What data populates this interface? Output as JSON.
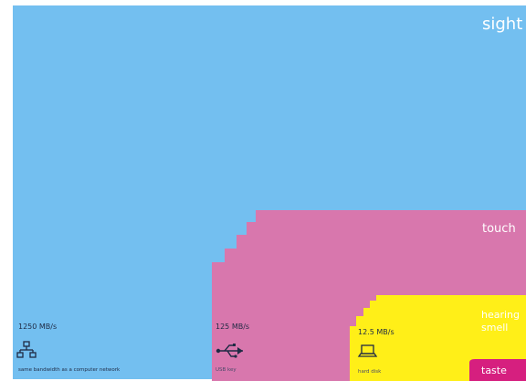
{
  "senses": {
    "sight": "sight",
    "touch": "touch",
    "hearing": "hearing",
    "smell": "smell",
    "taste": "taste"
  },
  "comparisons": {
    "network": {
      "rate": "1250 MB/s",
      "note": "same bandwidth as a computer network",
      "icon": "network-icon"
    },
    "usb": {
      "rate": "125 MB/s",
      "note": "USB key",
      "icon": "usb-icon"
    },
    "hard_disk": {
      "rate": "12.5 MB/s",
      "note": "hard disk",
      "icon": "laptop-icon"
    }
  },
  "colors": {
    "sight": "#73bff0",
    "touch": "#d877ad",
    "hearing": "#ffef18",
    "taste": "#d61f7f",
    "label_dark": "#1f2a44"
  }
}
